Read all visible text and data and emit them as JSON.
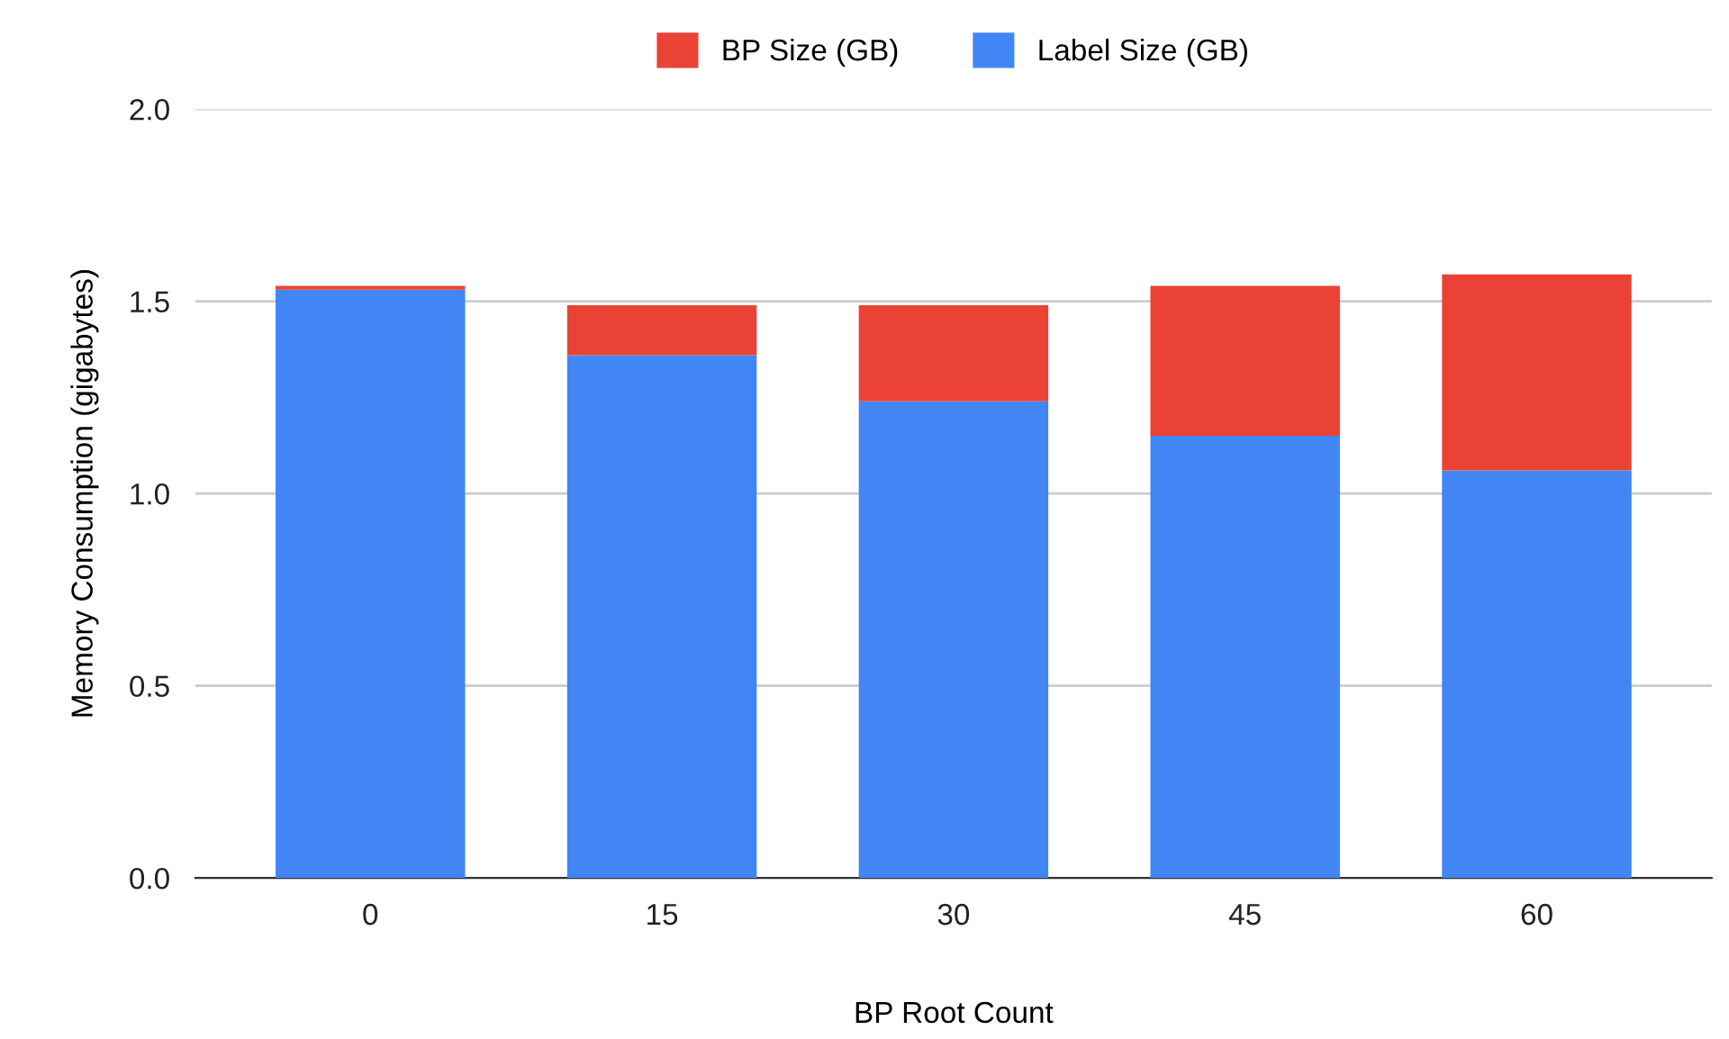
{
  "chart_data": {
    "type": "bar",
    "stacked": true,
    "xlabel": "BP Root Count",
    "ylabel": "Memory Consumption (gigabytes)",
    "categories": [
      "0",
      "15",
      "30",
      "45",
      "60"
    ],
    "series": [
      {
        "name": "Label Size (GB)",
        "color": "#4285f4",
        "values": [
          1.53,
          1.36,
          1.24,
          1.15,
          1.06
        ]
      },
      {
        "name": "BP Size (GB)",
        "color": "#ea4335",
        "values": [
          0.01,
          0.13,
          0.25,
          0.39,
          0.51
        ]
      }
    ],
    "ylim": [
      0,
      2.0
    ],
    "yticks": [
      {
        "value": 0,
        "label": "0.0"
      },
      {
        "value": 0.5,
        "label": "0.5"
      },
      {
        "value": 1.0,
        "label": "1.0"
      },
      {
        "value": 1.5,
        "label": "1.5"
      },
      {
        "value": 2.0,
        "label": "2.0"
      }
    ],
    "grid": "y",
    "legend": "top"
  }
}
